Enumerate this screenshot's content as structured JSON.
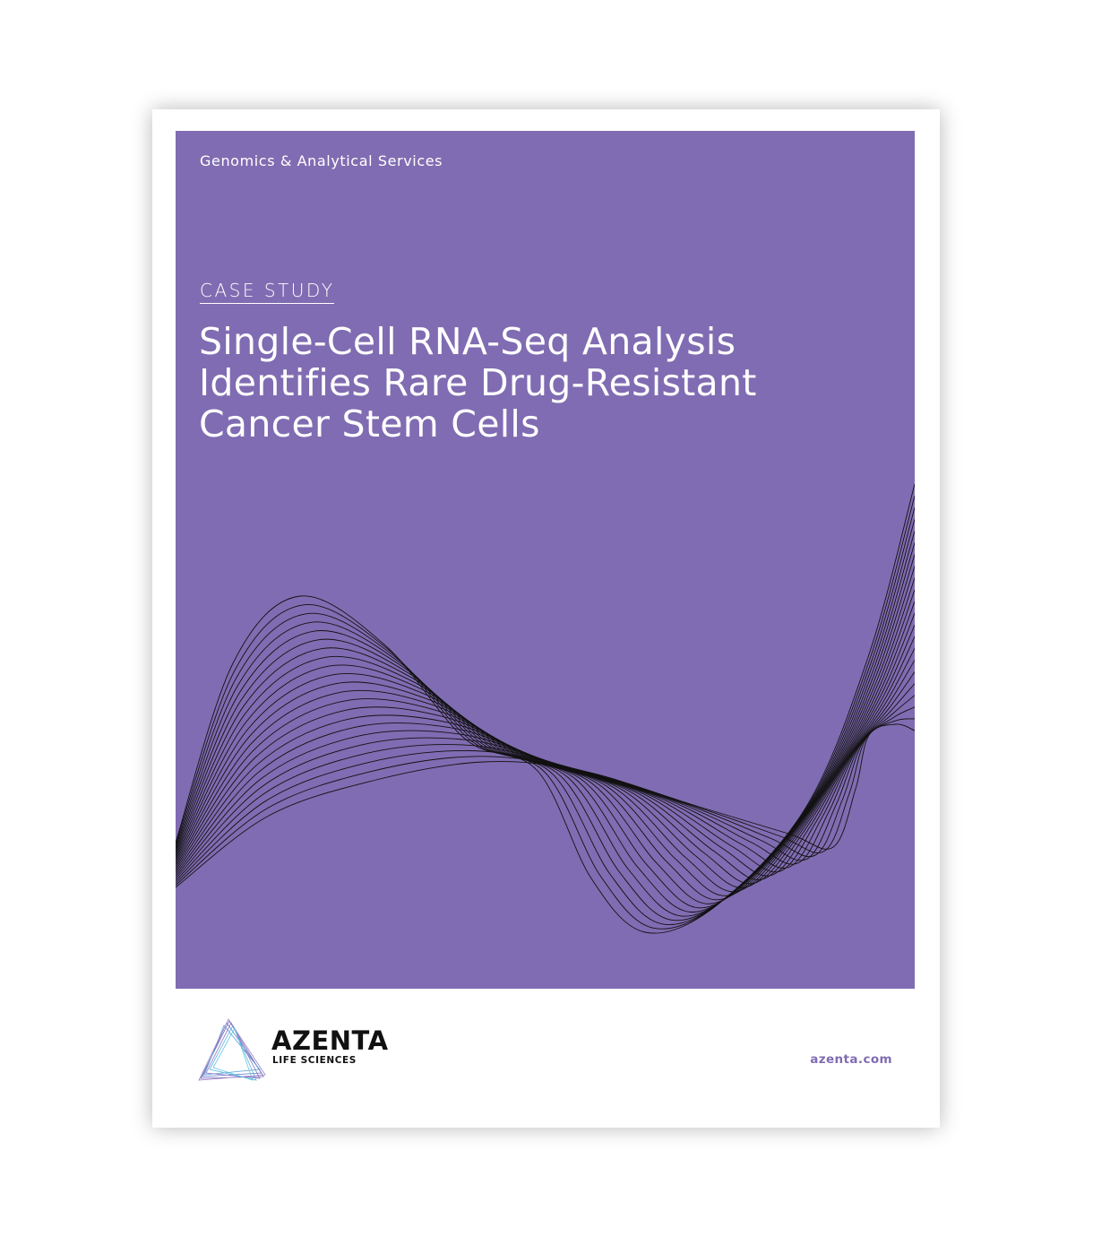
{
  "header": {
    "division": "Genomics & Analytical Services",
    "label": "CASE STUDY",
    "title_lines": [
      "Single-Cell RNA-Seq Analysis",
      "Identifies Rare Drug-Resistant",
      "Cancer Stem Cells"
    ]
  },
  "footer": {
    "brand": "AZENTA",
    "brand_sub": "LIFE SCIENCES",
    "website": "azenta.com"
  }
}
